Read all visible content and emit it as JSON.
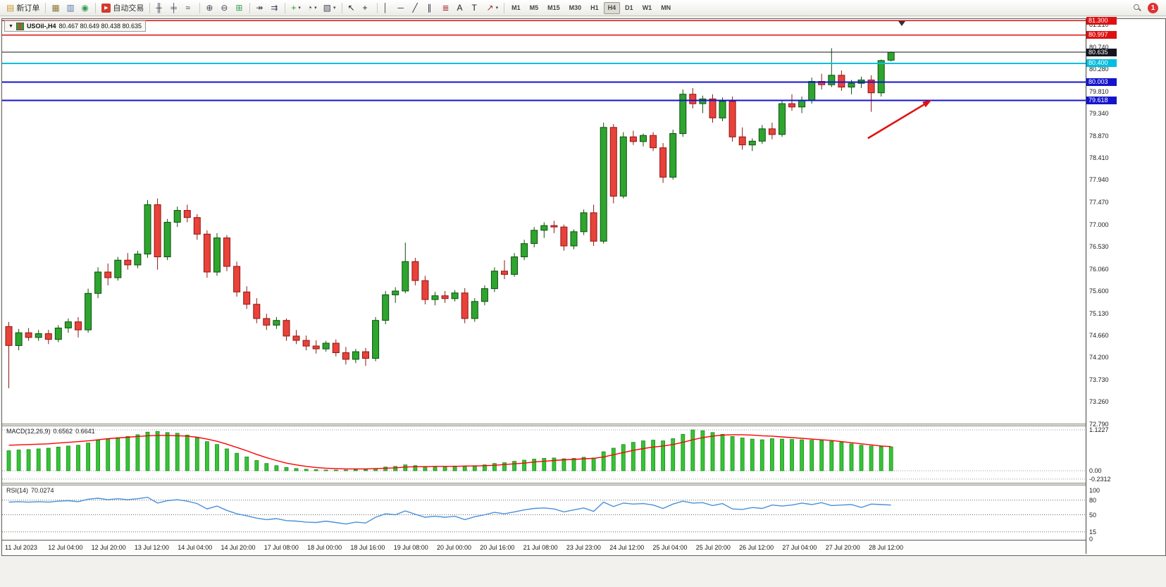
{
  "toolbar": {
    "groups": [
      {
        "items": [
          {
            "name": "new-order",
            "icon": "new-order-icon",
            "glyph": "▤",
            "glyph_color": "#c89a2a",
            "label": "新订单"
          }
        ]
      },
      {
        "items": [
          {
            "name": "charts-panel",
            "icon": "chart-window-icon",
            "glyph": "▦",
            "glyph_color": "#8a7a3a"
          },
          {
            "name": "data-window",
            "icon": "data-window-icon",
            "glyph": "▥",
            "glyph_color": "#5878a8"
          },
          {
            "name": "community",
            "icon": "community-icon",
            "glyph": "◉",
            "glyph_color": "#2f9e4e"
          }
        ]
      },
      {
        "items": [
          {
            "name": "autotrading",
            "icon": "play-icon",
            "glyph": "▶",
            "glyph_color": "#ffffff",
            "glyph_bg": "#d23b2f",
            "label": "自动交易"
          }
        ]
      },
      {
        "items": [
          {
            "name": "chart-type-bars",
            "icon": "ohlc-bars-icon",
            "glyph": "╫",
            "glyph_color": "#445"
          },
          {
            "name": "chart-type-candles",
            "icon": "candlestick-icon",
            "glyph": "╪",
            "glyph_color": "#445"
          },
          {
            "name": "chart-type-line",
            "icon": "line-chart-icon",
            "glyph": "≈",
            "glyph_color": "#445"
          }
        ]
      },
      {
        "items": [
          {
            "name": "zoom-in",
            "icon": "zoom-in-icon",
            "glyph": "⊕",
            "glyph_color": "#445"
          },
          {
            "name": "zoom-out",
            "icon": "zoom-out-icon",
            "glyph": "⊖",
            "glyph_color": "#445"
          },
          {
            "name": "tile-windows",
            "icon": "tile-windows-icon",
            "glyph": "⊞",
            "glyph_color": "#2f9e4e"
          }
        ]
      },
      {
        "items": [
          {
            "name": "auto-scroll",
            "icon": "auto-scroll-icon",
            "glyph": "↠",
            "glyph_color": "#445"
          },
          {
            "name": "chart-shift",
            "icon": "chart-shift-icon",
            "glyph": "⇉",
            "glyph_color": "#445"
          }
        ]
      },
      {
        "items": [
          {
            "name": "add-indicator",
            "icon": "indicator-plus-icon",
            "glyph": "+",
            "glyph_color": "#1e9e1e",
            "caret": true
          },
          {
            "name": "periods",
            "icon": "clock-icon",
            "glyph": "◔",
            "glyph_color": "#445",
            "caret": true
          },
          {
            "name": "templates",
            "icon": "template-icon",
            "glyph": "▧",
            "glyph_color": "#445",
            "caret": true
          }
        ]
      },
      {
        "items": [
          {
            "name": "cursor",
            "icon": "cursor-icon",
            "glyph": "↖",
            "glyph_color": "#222"
          },
          {
            "name": "crosshair",
            "icon": "crosshair-icon",
            "glyph": "+",
            "glyph_color": "#222"
          }
        ]
      },
      {
        "items": [
          {
            "name": "draw-vertical-line",
            "icon": "vertical-line-icon",
            "glyph": "│",
            "glyph_color": "#334"
          },
          {
            "name": "draw-horizontal-line",
            "icon": "horizontal-line-icon",
            "glyph": "─",
            "glyph_color": "#334"
          },
          {
            "name": "draw-trendline",
            "icon": "trendline-icon",
            "glyph": "╱",
            "glyph_color": "#334"
          },
          {
            "name": "draw-channel",
            "icon": "channel-icon",
            "glyph": "∥",
            "glyph_color": "#334"
          },
          {
            "name": "draw-fibonacci",
            "icon": "fibonacci-icon",
            "glyph": "≣",
            "glyph_color": "#a33"
          },
          {
            "name": "draw-text",
            "icon": "text-icon",
            "glyph": "A",
            "glyph_color": "#222"
          },
          {
            "name": "draw-label",
            "icon": "label-icon",
            "glyph": "T",
            "glyph_color": "#222"
          },
          {
            "name": "draw-arrows",
            "icon": "arrow-icon",
            "glyph": "↗",
            "glyph_color": "#a33",
            "caret": true
          }
        ]
      }
    ],
    "timeframes": [
      "M1",
      "M5",
      "M15",
      "M30",
      "H1",
      "H4",
      "D1",
      "W1",
      "MN"
    ],
    "active_timeframe": "H4",
    "notification_count": "1"
  },
  "chart_window": {
    "menu_triangle": "▼",
    "title": "USOil-,H4",
    "ohlc": "80.467 80.649 80.438 80.635"
  },
  "indicators": {
    "macd": {
      "label": "MACD(12,26,9)",
      "value1": "0.6562",
      "value2": "0.6641",
      "scale": [
        "1.1227",
        "0.00",
        "-0.2312"
      ]
    },
    "rsi": {
      "label": "RSI(14)",
      "value": "70.0274",
      "levels": [
        "100",
        "80",
        "50",
        "15",
        "0"
      ]
    }
  },
  "chart_data": {
    "type": "candlestick",
    "symbol": "USOil",
    "timeframe": "H4",
    "ylim": [
      72.7,
      81.34
    ],
    "price_ticks": [
      "81.210",
      "80.740",
      "80.280",
      "79.810",
      "79.340",
      "78.870",
      "78.410",
      "77.940",
      "77.470",
      "77.000",
      "76.530",
      "76.060",
      "75.600",
      "75.130",
      "74.660",
      "74.200",
      "73.730",
      "73.260",
      "72.790"
    ],
    "time_labels": [
      "11 Jul 2023",
      "12 Jul 04:00",
      "12 Jul 20:00",
      "13 Jul 12:00",
      "14 Jul 04:00",
      "14 Jul 20:00",
      "17 Jul 08:00",
      "18 Jul 00:00",
      "18 Jul 16:00",
      "19 Jul 08:00",
      "20 Jul 00:00",
      "20 Jul 16:00",
      "21 Jul 08:00",
      "23 Jul 23:00",
      "24 Jul 12:00",
      "25 Jul 04:00",
      "25 Jul 20:00",
      "26 Jul 12:00",
      "27 Jul 04:00",
      "27 Jul 20:00",
      "28 Jul 12:00"
    ],
    "hlines": [
      {
        "price": 81.3,
        "label": "81.300",
        "color": "#dd1111",
        "width": 1.4
      },
      {
        "price": 80.997,
        "label": "80.997",
        "color": "#dd1111",
        "width": 1.4
      },
      {
        "price": 80.635,
        "label": "80.635",
        "color": "#15151f",
        "width": 1,
        "current": true
      },
      {
        "price": 80.4,
        "label": "80.400",
        "color": "#00bfe0",
        "width": 2
      },
      {
        "price": 80.003,
        "label": "80.003",
        "color": "#1414cc",
        "width": 2
      },
      {
        "price": 79.618,
        "label": "79.618",
        "color": "#1414cc",
        "width": 2
      }
    ],
    "candles": [
      [
        74.85,
        74.95,
        73.55,
        74.45
      ],
      [
        74.45,
        74.8,
        74.35,
        74.72
      ],
      [
        74.72,
        74.82,
        74.55,
        74.62
      ],
      [
        74.62,
        74.78,
        74.55,
        74.7
      ],
      [
        74.7,
        74.78,
        74.48,
        74.58
      ],
      [
        74.58,
        74.88,
        74.52,
        74.82
      ],
      [
        74.82,
        75.02,
        74.72,
        74.95
      ],
      [
        74.95,
        75.05,
        74.62,
        74.78
      ],
      [
        74.78,
        75.65,
        74.72,
        75.55
      ],
      [
        75.55,
        76.1,
        75.45,
        76.0
      ],
      [
        76.0,
        76.18,
        75.72,
        75.88
      ],
      [
        75.88,
        76.32,
        75.82,
        76.25
      ],
      [
        76.25,
        76.4,
        76.05,
        76.15
      ],
      [
        76.15,
        76.45,
        76.08,
        76.38
      ],
      [
        76.38,
        77.52,
        76.3,
        77.42
      ],
      [
        77.42,
        77.55,
        76.05,
        76.32
      ],
      [
        76.32,
        77.12,
        76.25,
        77.05
      ],
      [
        77.05,
        77.38,
        76.95,
        77.3
      ],
      [
        77.3,
        77.42,
        77.05,
        77.15
      ],
      [
        77.15,
        77.22,
        76.68,
        76.8
      ],
      [
        76.8,
        76.88,
        75.88,
        76.0
      ],
      [
        76.0,
        76.82,
        75.92,
        76.72
      ],
      [
        76.72,
        76.78,
        76.02,
        76.12
      ],
      [
        76.12,
        76.22,
        75.48,
        75.58
      ],
      [
        75.58,
        75.7,
        75.22,
        75.32
      ],
      [
        75.32,
        75.45,
        74.92,
        75.02
      ],
      [
        75.02,
        75.12,
        74.78,
        74.88
      ],
      [
        74.88,
        75.05,
        74.8,
        74.98
      ],
      [
        74.98,
        75.02,
        74.55,
        74.65
      ],
      [
        74.65,
        74.78,
        74.48,
        74.56
      ],
      [
        74.56,
        74.66,
        74.35,
        74.44
      ],
      [
        74.44,
        74.56,
        74.28,
        74.38
      ],
      [
        74.38,
        74.55,
        74.32,
        74.5
      ],
      [
        74.5,
        74.58,
        74.22,
        74.3
      ],
      [
        74.3,
        74.42,
        74.05,
        74.16
      ],
      [
        74.16,
        74.38,
        74.08,
        74.32
      ],
      [
        74.32,
        74.4,
        74.02,
        74.18
      ],
      [
        74.18,
        75.05,
        74.12,
        74.98
      ],
      [
        74.98,
        75.6,
        74.9,
        75.52
      ],
      [
        75.52,
        75.68,
        75.35,
        75.6
      ],
      [
        75.6,
        76.62,
        75.55,
        76.22
      ],
      [
        76.22,
        76.3,
        75.72,
        75.82
      ],
      [
        75.82,
        75.92,
        75.32,
        75.42
      ],
      [
        75.42,
        75.58,
        75.3,
        75.5
      ],
      [
        75.5,
        75.6,
        75.35,
        75.44
      ],
      [
        75.44,
        75.62,
        75.38,
        75.56
      ],
      [
        75.56,
        75.66,
        74.92,
        75.02
      ],
      [
        75.02,
        75.45,
        74.95,
        75.38
      ],
      [
        75.38,
        75.72,
        75.3,
        75.65
      ],
      [
        75.65,
        76.1,
        75.58,
        76.02
      ],
      [
        76.02,
        76.25,
        75.85,
        75.95
      ],
      [
        75.95,
        76.4,
        75.9,
        76.32
      ],
      [
        76.32,
        76.68,
        76.25,
        76.6
      ],
      [
        76.6,
        76.95,
        76.52,
        76.88
      ],
      [
        76.88,
        77.05,
        76.72,
        76.98
      ],
      [
        76.98,
        77.08,
        76.82,
        76.95
      ],
      [
        76.95,
        77.0,
        76.45,
        76.55
      ],
      [
        76.55,
        76.9,
        76.48,
        76.85
      ],
      [
        76.85,
        77.32,
        76.78,
        77.25
      ],
      [
        77.25,
        77.42,
        76.55,
        76.65
      ],
      [
        76.65,
        79.15,
        76.6,
        79.05
      ],
      [
        79.05,
        79.12,
        77.45,
        77.6
      ],
      [
        77.6,
        78.95,
        77.55,
        78.85
      ],
      [
        78.85,
        78.98,
        78.68,
        78.75
      ],
      [
        78.75,
        78.92,
        78.65,
        78.88
      ],
      [
        78.88,
        78.95,
        78.55,
        78.62
      ],
      [
        78.62,
        78.72,
        77.88,
        78.0
      ],
      [
        78.0,
        79.0,
        77.95,
        78.92
      ],
      [
        78.92,
        79.85,
        78.85,
        79.75
      ],
      [
        79.75,
        79.88,
        79.45,
        79.55
      ],
      [
        79.55,
        79.72,
        79.35,
        79.65
      ],
      [
        79.65,
        79.75,
        79.15,
        79.25
      ],
      [
        79.25,
        79.68,
        79.18,
        79.6
      ],
      [
        79.6,
        79.7,
        78.75,
        78.85
      ],
      [
        78.85,
        79.05,
        78.58,
        78.68
      ],
      [
        78.68,
        78.82,
        78.55,
        78.76
      ],
      [
        78.76,
        79.1,
        78.7,
        79.02
      ],
      [
        79.02,
        79.15,
        78.8,
        78.9
      ],
      [
        78.9,
        79.62,
        78.85,
        79.55
      ],
      [
        79.55,
        79.75,
        79.4,
        79.48
      ],
      [
        79.48,
        79.7,
        79.35,
        79.62
      ],
      [
        79.62,
        80.1,
        79.55,
        80.02
      ],
      [
        80.02,
        80.18,
        79.85,
        79.95
      ],
      [
        79.95,
        80.72,
        79.9,
        80.15
      ],
      [
        80.15,
        80.25,
        79.82,
        79.9
      ],
      [
        79.9,
        80.05,
        79.75,
        79.98
      ],
      [
        79.98,
        80.12,
        79.88,
        80.05
      ],
      [
        80.05,
        80.15,
        79.38,
        79.78
      ],
      [
        79.78,
        80.48,
        79.7,
        80.46
      ],
      [
        80.467,
        80.649,
        80.438,
        80.635
      ]
    ],
    "macd_histogram": [
      0.55,
      0.57,
      0.58,
      0.6,
      0.62,
      0.65,
      0.68,
      0.7,
      0.76,
      0.83,
      0.87,
      0.91,
      0.94,
      0.99,
      1.06,
      1.08,
      1.05,
      1.03,
      0.98,
      0.9,
      0.8,
      0.72,
      0.6,
      0.48,
      0.38,
      0.28,
      0.2,
      0.14,
      0.09,
      0.06,
      0.04,
      0.03,
      0.02,
      0.02,
      0.02,
      0.03,
      0.03,
      0.06,
      0.1,
      0.12,
      0.16,
      0.14,
      0.12,
      0.11,
      0.12,
      0.13,
      0.12,
      0.14,
      0.16,
      0.2,
      0.22,
      0.26,
      0.29,
      0.32,
      0.34,
      0.35,
      0.33,
      0.34,
      0.37,
      0.35,
      0.52,
      0.62,
      0.72,
      0.78,
      0.82,
      0.84,
      0.82,
      0.88,
      1.0,
      1.12,
      1.1,
      1.05,
      1.0,
      0.94,
      0.9,
      0.87,
      0.85,
      0.88,
      0.87,
      0.86,
      0.85,
      0.84,
      0.83,
      0.81,
      0.78,
      0.74,
      0.7,
      0.68,
      0.66,
      0.656
    ],
    "macd_signal": [
      0.7,
      0.71,
      0.72,
      0.73,
      0.74,
      0.76,
      0.78,
      0.8,
      0.82,
      0.85,
      0.88,
      0.9,
      0.92,
      0.94,
      0.96,
      0.97,
      0.97,
      0.96,
      0.95,
      0.92,
      0.87,
      0.81,
      0.73,
      0.64,
      0.55,
      0.45,
      0.36,
      0.28,
      0.21,
      0.16,
      0.12,
      0.09,
      0.07,
      0.06,
      0.05,
      0.05,
      0.05,
      0.06,
      0.07,
      0.08,
      0.1,
      0.11,
      0.11,
      0.12,
      0.12,
      0.12,
      0.13,
      0.13,
      0.14,
      0.15,
      0.17,
      0.19,
      0.21,
      0.24,
      0.26,
      0.28,
      0.3,
      0.31,
      0.33,
      0.34,
      0.38,
      0.44,
      0.5,
      0.56,
      0.61,
      0.65,
      0.68,
      0.72,
      0.78,
      0.85,
      0.91,
      0.95,
      0.98,
      0.99,
      0.99,
      0.98,
      0.96,
      0.95,
      0.93,
      0.91,
      0.89,
      0.87,
      0.85,
      0.83,
      0.8,
      0.77,
      0.74,
      0.71,
      0.68,
      0.664
    ],
    "rsi_series": [
      76,
      77,
      76,
      77,
      76,
      78,
      79,
      77,
      82,
      84,
      81,
      83,
      81,
      83,
      86,
      74,
      79,
      81,
      78,
      73,
      62,
      68,
      59,
      52,
      48,
      43,
      40,
      42,
      38,
      37,
      35,
      34,
      37,
      34,
      31,
      35,
      33,
      45,
      52,
      50,
      58,
      51,
      45,
      47,
      45,
      47,
      40,
      46,
      50,
      55,
      52,
      56,
      60,
      63,
      64,
      62,
      56,
      60,
      64,
      57,
      76,
      67,
      74,
      72,
      73,
      70,
      63,
      72,
      78,
      74,
      75,
      69,
      73,
      62,
      61,
      65,
      63,
      70,
      68,
      70,
      74,
      71,
      75,
      69,
      70,
      71,
      65,
      72,
      71,
      70.03
    ],
    "arrow_annotation": {
      "from_x": 0.799,
      "from_price": 78.82,
      "to_x": 0.858,
      "to_price": 79.63,
      "color": "#e01010"
    },
    "colors": {
      "bull_fill": "#2EA52F",
      "bull_border": "#0d4f0d",
      "bear_fill": "#E8423A",
      "bear_border": "#8f1612",
      "macd_bar": "#35c435",
      "macd_bar_border": "#1d8a1d",
      "macd_signal": "#ff0000",
      "rsi_line": "#4a90d9"
    }
  }
}
